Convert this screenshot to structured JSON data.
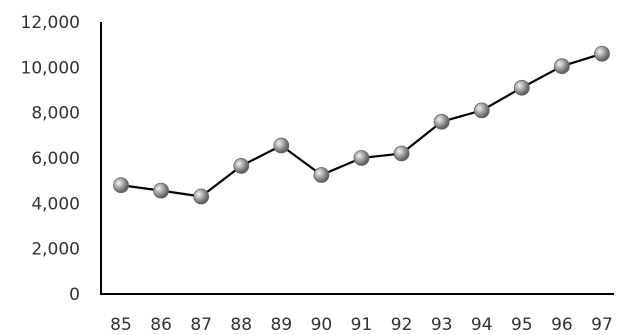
{
  "chart_data": {
    "type": "line",
    "title": "",
    "xlabel": "",
    "ylabel": "",
    "x": [
      "85",
      "86",
      "87",
      "88",
      "89",
      "90",
      "91",
      "92",
      "93",
      "94",
      "95",
      "96",
      "97"
    ],
    "series": [
      {
        "values": [
          4800,
          4560,
          4300,
          5650,
          6550,
          5250,
          6000,
          6200,
          7600,
          8100,
          9100,
          10050,
          10600
        ]
      }
    ],
    "ylim": [
      0,
      12000
    ],
    "yticks": [
      {
        "value": 0,
        "label": "0"
      },
      {
        "value": 2000,
        "label": "2,000"
      },
      {
        "value": 4000,
        "label": "4,000"
      },
      {
        "value": 6000,
        "label": "6,000"
      },
      {
        "value": 8000,
        "label": "8,000"
      },
      {
        "value": 10000,
        "label": "10,000"
      },
      {
        "value": 12000,
        "label": "12,000"
      }
    ],
    "grid": false,
    "legend": "none",
    "colors": {
      "line": "#000000",
      "marker": "#8c8c8c",
      "axis": "#000000",
      "text": "#333333"
    }
  }
}
